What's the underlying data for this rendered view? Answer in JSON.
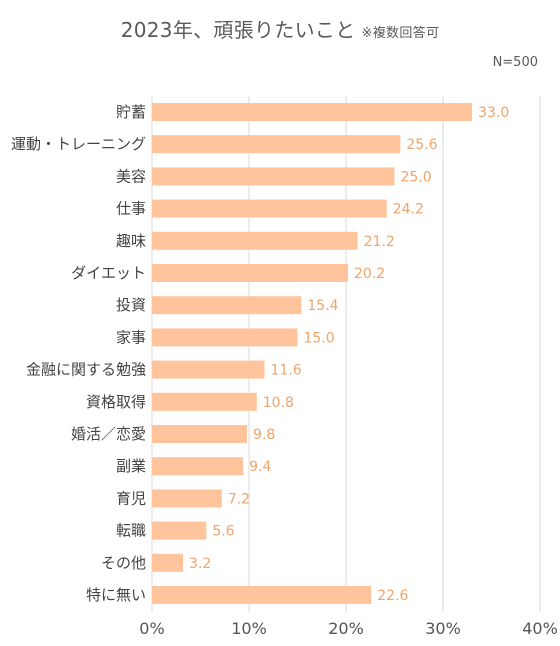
{
  "header": {
    "title": "2023年、頑張りたいこと",
    "note": "※複数回答可",
    "sample": "N=500"
  },
  "colors": {
    "bar": "#ffc49b",
    "value_text": "#f0a46a",
    "grid": "#d9d9d9",
    "text": "#444444"
  },
  "chart_data": {
    "type": "bar",
    "orientation": "horizontal",
    "title": "2023年、頑張りたいこと",
    "subtitle": "※複数回答可",
    "annotation": "N=500",
    "xlabel": "",
    "ylabel": "",
    "categories": [
      "貯蓄",
      "運動・トレーニング",
      "美容",
      "仕事",
      "趣味",
      "ダイエット",
      "投資",
      "家事",
      "金融に関する勉強",
      "資格取得",
      "婚活／恋愛",
      "副業",
      "育児",
      "転職",
      "その他",
      "特に無い"
    ],
    "values": [
      33.0,
      25.6,
      25.0,
      24.2,
      21.2,
      20.2,
      15.4,
      15.0,
      11.6,
      10.8,
      9.8,
      9.4,
      7.2,
      5.6,
      3.2,
      22.6
    ],
    "value_labels": [
      "33.0",
      "25.6",
      "25.0",
      "24.2",
      "21.2",
      "20.2",
      "15.4",
      "15.0",
      "11.6",
      "10.8",
      "9.8",
      "9.4",
      "7.2",
      "5.6",
      "3.2",
      "22.6"
    ],
    "xlim": [
      0,
      40
    ],
    "xticks": [
      0,
      10,
      20,
      30,
      40
    ],
    "xtick_labels": [
      "0%",
      "10%",
      "20%",
      "30%",
      "40%"
    ],
    "grid": true,
    "legend": "none"
  }
}
